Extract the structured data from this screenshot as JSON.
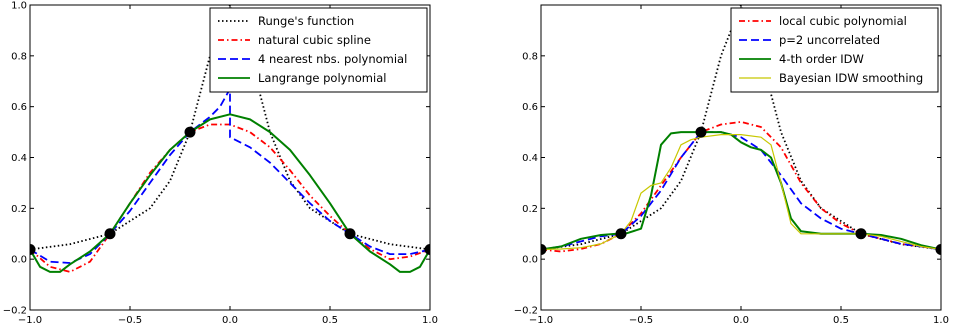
{
  "chart_data": [
    {
      "type": "line",
      "xlim": [
        -1.0,
        1.0
      ],
      "ylim": [
        -0.2,
        1.0
      ],
      "xticks": [
        "-1.0",
        "-0.5",
        "0.0",
        "0.5",
        "1.0"
      ],
      "yticks": [
        "-0.2",
        "0.0",
        "0.2",
        "0.4",
        "0.6",
        "0.8",
        "1.0"
      ],
      "grid": false,
      "legend_position": "top-right",
      "data_points": {
        "x": [
          -1.0,
          -0.6,
          -0.2,
          0.6,
          1.0
        ],
        "y": [
          0.038,
          0.1,
          0.5,
          0.1,
          0.038
        ]
      },
      "series": [
        {
          "name": "Runge's function",
          "color": "#000000",
          "style": "dotted",
          "x": [
            -1.0,
            -0.8,
            -0.6,
            -0.4,
            -0.3,
            -0.2,
            -0.1,
            0.0,
            0.1,
            0.2,
            0.3,
            0.4,
            0.6,
            0.8,
            1.0
          ],
          "y": [
            0.038,
            0.059,
            0.1,
            0.2,
            0.308,
            0.5,
            0.8,
            1.0,
            0.8,
            0.5,
            0.308,
            0.2,
            0.1,
            0.059,
            0.038
          ]
        },
        {
          "name": "natural cubic spline",
          "color": "#ff0000",
          "style": "dashdot",
          "x": [
            -1.0,
            -0.9,
            -0.8,
            -0.7,
            -0.6,
            -0.5,
            -0.4,
            -0.3,
            -0.2,
            -0.1,
            0.0,
            0.1,
            0.2,
            0.3,
            0.4,
            0.5,
            0.6,
            0.7,
            0.8,
            0.9,
            1.0
          ],
          "y": [
            0.038,
            -0.03,
            -0.05,
            -0.01,
            0.1,
            0.22,
            0.34,
            0.43,
            0.5,
            0.53,
            0.53,
            0.5,
            0.44,
            0.35,
            0.25,
            0.17,
            0.1,
            0.04,
            0.0,
            0.01,
            0.038
          ]
        },
        {
          "name": "4 nearest nbs. polynomial",
          "color": "#0000ff",
          "style": "dashed",
          "x": [
            -1.0,
            -0.9,
            -0.8,
            -0.7,
            -0.6,
            -0.5,
            -0.4,
            -0.3,
            -0.2,
            -0.1,
            -0.05,
            0.0,
            0.0,
            0.1,
            0.2,
            0.3,
            0.4,
            0.5,
            0.6,
            0.7,
            0.8,
            0.9,
            1.0
          ],
          "y": [
            0.038,
            -0.01,
            -0.015,
            0.02,
            0.1,
            0.19,
            0.3,
            0.41,
            0.5,
            0.56,
            0.6,
            0.67,
            0.48,
            0.44,
            0.38,
            0.3,
            0.22,
            0.15,
            0.1,
            0.05,
            0.02,
            0.02,
            0.038
          ]
        },
        {
          "name": "Langrange polynomial",
          "color": "#008000",
          "style": "solid",
          "x": [
            -1.0,
            -0.95,
            -0.9,
            -0.85,
            -0.8,
            -0.7,
            -0.6,
            -0.5,
            -0.4,
            -0.3,
            -0.2,
            -0.1,
            0.0,
            0.1,
            0.2,
            0.3,
            0.4,
            0.5,
            0.6,
            0.7,
            0.8,
            0.85,
            0.9,
            0.95,
            1.0
          ],
          "y": [
            0.038,
            -0.03,
            -0.05,
            -0.05,
            -0.02,
            0.03,
            0.1,
            0.22,
            0.33,
            0.43,
            0.5,
            0.55,
            0.57,
            0.55,
            0.5,
            0.43,
            0.33,
            0.22,
            0.1,
            0.03,
            -0.02,
            -0.05,
            -0.05,
            -0.03,
            0.038
          ]
        }
      ]
    },
    {
      "type": "line",
      "xlim": [
        -1.0,
        1.0
      ],
      "ylim": [
        -0.2,
        1.0
      ],
      "xticks": [
        "-1.0",
        "-0.5",
        "0.0",
        "0.5",
        "1.0"
      ],
      "yticks": [
        "-0.2",
        "0.0",
        "0.2",
        "0.4",
        "0.6",
        "0.8",
        ""
      ],
      "grid": false,
      "legend_position": "top-right",
      "data_points": {
        "x": [
          -1.0,
          -0.6,
          -0.2,
          0.6,
          1.0
        ],
        "y": [
          0.038,
          0.1,
          0.5,
          0.1,
          0.038
        ]
      },
      "series": [
        {
          "name": "Runge's function",
          "color": "#000000",
          "style": "dotted",
          "in_legend": false,
          "x": [
            -1.0,
            -0.8,
            -0.6,
            -0.4,
            -0.3,
            -0.2,
            -0.1,
            0.0,
            0.1,
            0.2,
            0.3,
            0.4,
            0.6,
            0.8,
            1.0
          ],
          "y": [
            0.038,
            0.059,
            0.1,
            0.2,
            0.308,
            0.5,
            0.8,
            1.0,
            0.8,
            0.5,
            0.308,
            0.2,
            0.1,
            0.059,
            0.038
          ]
        },
        {
          "name": "local cubic polynomial",
          "color": "#ff0000",
          "style": "dashdot",
          "x": [
            -1.0,
            -0.9,
            -0.8,
            -0.7,
            -0.6,
            -0.5,
            -0.4,
            -0.3,
            -0.2,
            -0.1,
            0.0,
            0.1,
            0.2,
            0.3,
            0.4,
            0.5,
            0.6,
            0.7,
            0.8,
            0.9,
            1.0
          ],
          "y": [
            0.038,
            0.03,
            0.04,
            0.06,
            0.1,
            0.18,
            0.29,
            0.4,
            0.5,
            0.53,
            0.54,
            0.52,
            0.44,
            0.3,
            0.2,
            0.14,
            0.1,
            0.08,
            0.06,
            0.05,
            0.038
          ]
        },
        {
          "name": "p=2 uncorrelated",
          "color": "#0000ff",
          "style": "dashed",
          "x": [
            -1.0,
            -0.9,
            -0.8,
            -0.7,
            -0.6,
            -0.5,
            -0.4,
            -0.3,
            -0.2,
            -0.1,
            0.0,
            0.1,
            0.2,
            0.3,
            0.4,
            0.5,
            0.6,
            0.7,
            0.8,
            0.9,
            1.0
          ],
          "y": [
            0.038,
            0.05,
            0.07,
            0.09,
            0.1,
            0.17,
            0.27,
            0.4,
            0.5,
            0.5,
            0.48,
            0.43,
            0.33,
            0.22,
            0.16,
            0.12,
            0.1,
            0.08,
            0.06,
            0.05,
            0.038
          ]
        },
        {
          "name": "4-th order IDW",
          "color": "#008000",
          "style": "solid",
          "x": [
            -1.0,
            -0.9,
            -0.8,
            -0.7,
            -0.62,
            -0.58,
            -0.5,
            -0.45,
            -0.4,
            -0.35,
            -0.3,
            -0.2,
            -0.1,
            -0.05,
            0.0,
            0.05,
            0.1,
            0.15,
            0.2,
            0.25,
            0.3,
            0.4,
            0.5,
            0.6,
            0.7,
            0.8,
            0.9,
            1.0
          ],
          "y": [
            0.038,
            0.05,
            0.08,
            0.095,
            0.1,
            0.1,
            0.12,
            0.25,
            0.45,
            0.495,
            0.5,
            0.5,
            0.5,
            0.49,
            0.46,
            0.44,
            0.43,
            0.4,
            0.3,
            0.16,
            0.11,
            0.1,
            0.1,
            0.1,
            0.095,
            0.08,
            0.055,
            0.038
          ]
        },
        {
          "name": "Bayesian IDW smoothing",
          "color": "#c8c800",
          "style": "solid",
          "x": [
            -1.0,
            -0.9,
            -0.8,
            -0.7,
            -0.6,
            -0.55,
            -0.5,
            -0.45,
            -0.4,
            -0.35,
            -0.3,
            -0.25,
            -0.2,
            -0.1,
            0.0,
            0.1,
            0.15,
            0.2,
            0.25,
            0.3,
            0.4,
            0.5,
            0.6,
            0.7,
            0.8,
            0.9,
            1.0
          ],
          "y": [
            0.038,
            0.04,
            0.045,
            0.06,
            0.1,
            0.15,
            0.26,
            0.29,
            0.3,
            0.36,
            0.45,
            0.47,
            0.48,
            0.49,
            0.49,
            0.48,
            0.45,
            0.3,
            0.14,
            0.1,
            0.1,
            0.1,
            0.1,
            0.09,
            0.07,
            0.05,
            0.038
          ]
        }
      ]
    }
  ]
}
